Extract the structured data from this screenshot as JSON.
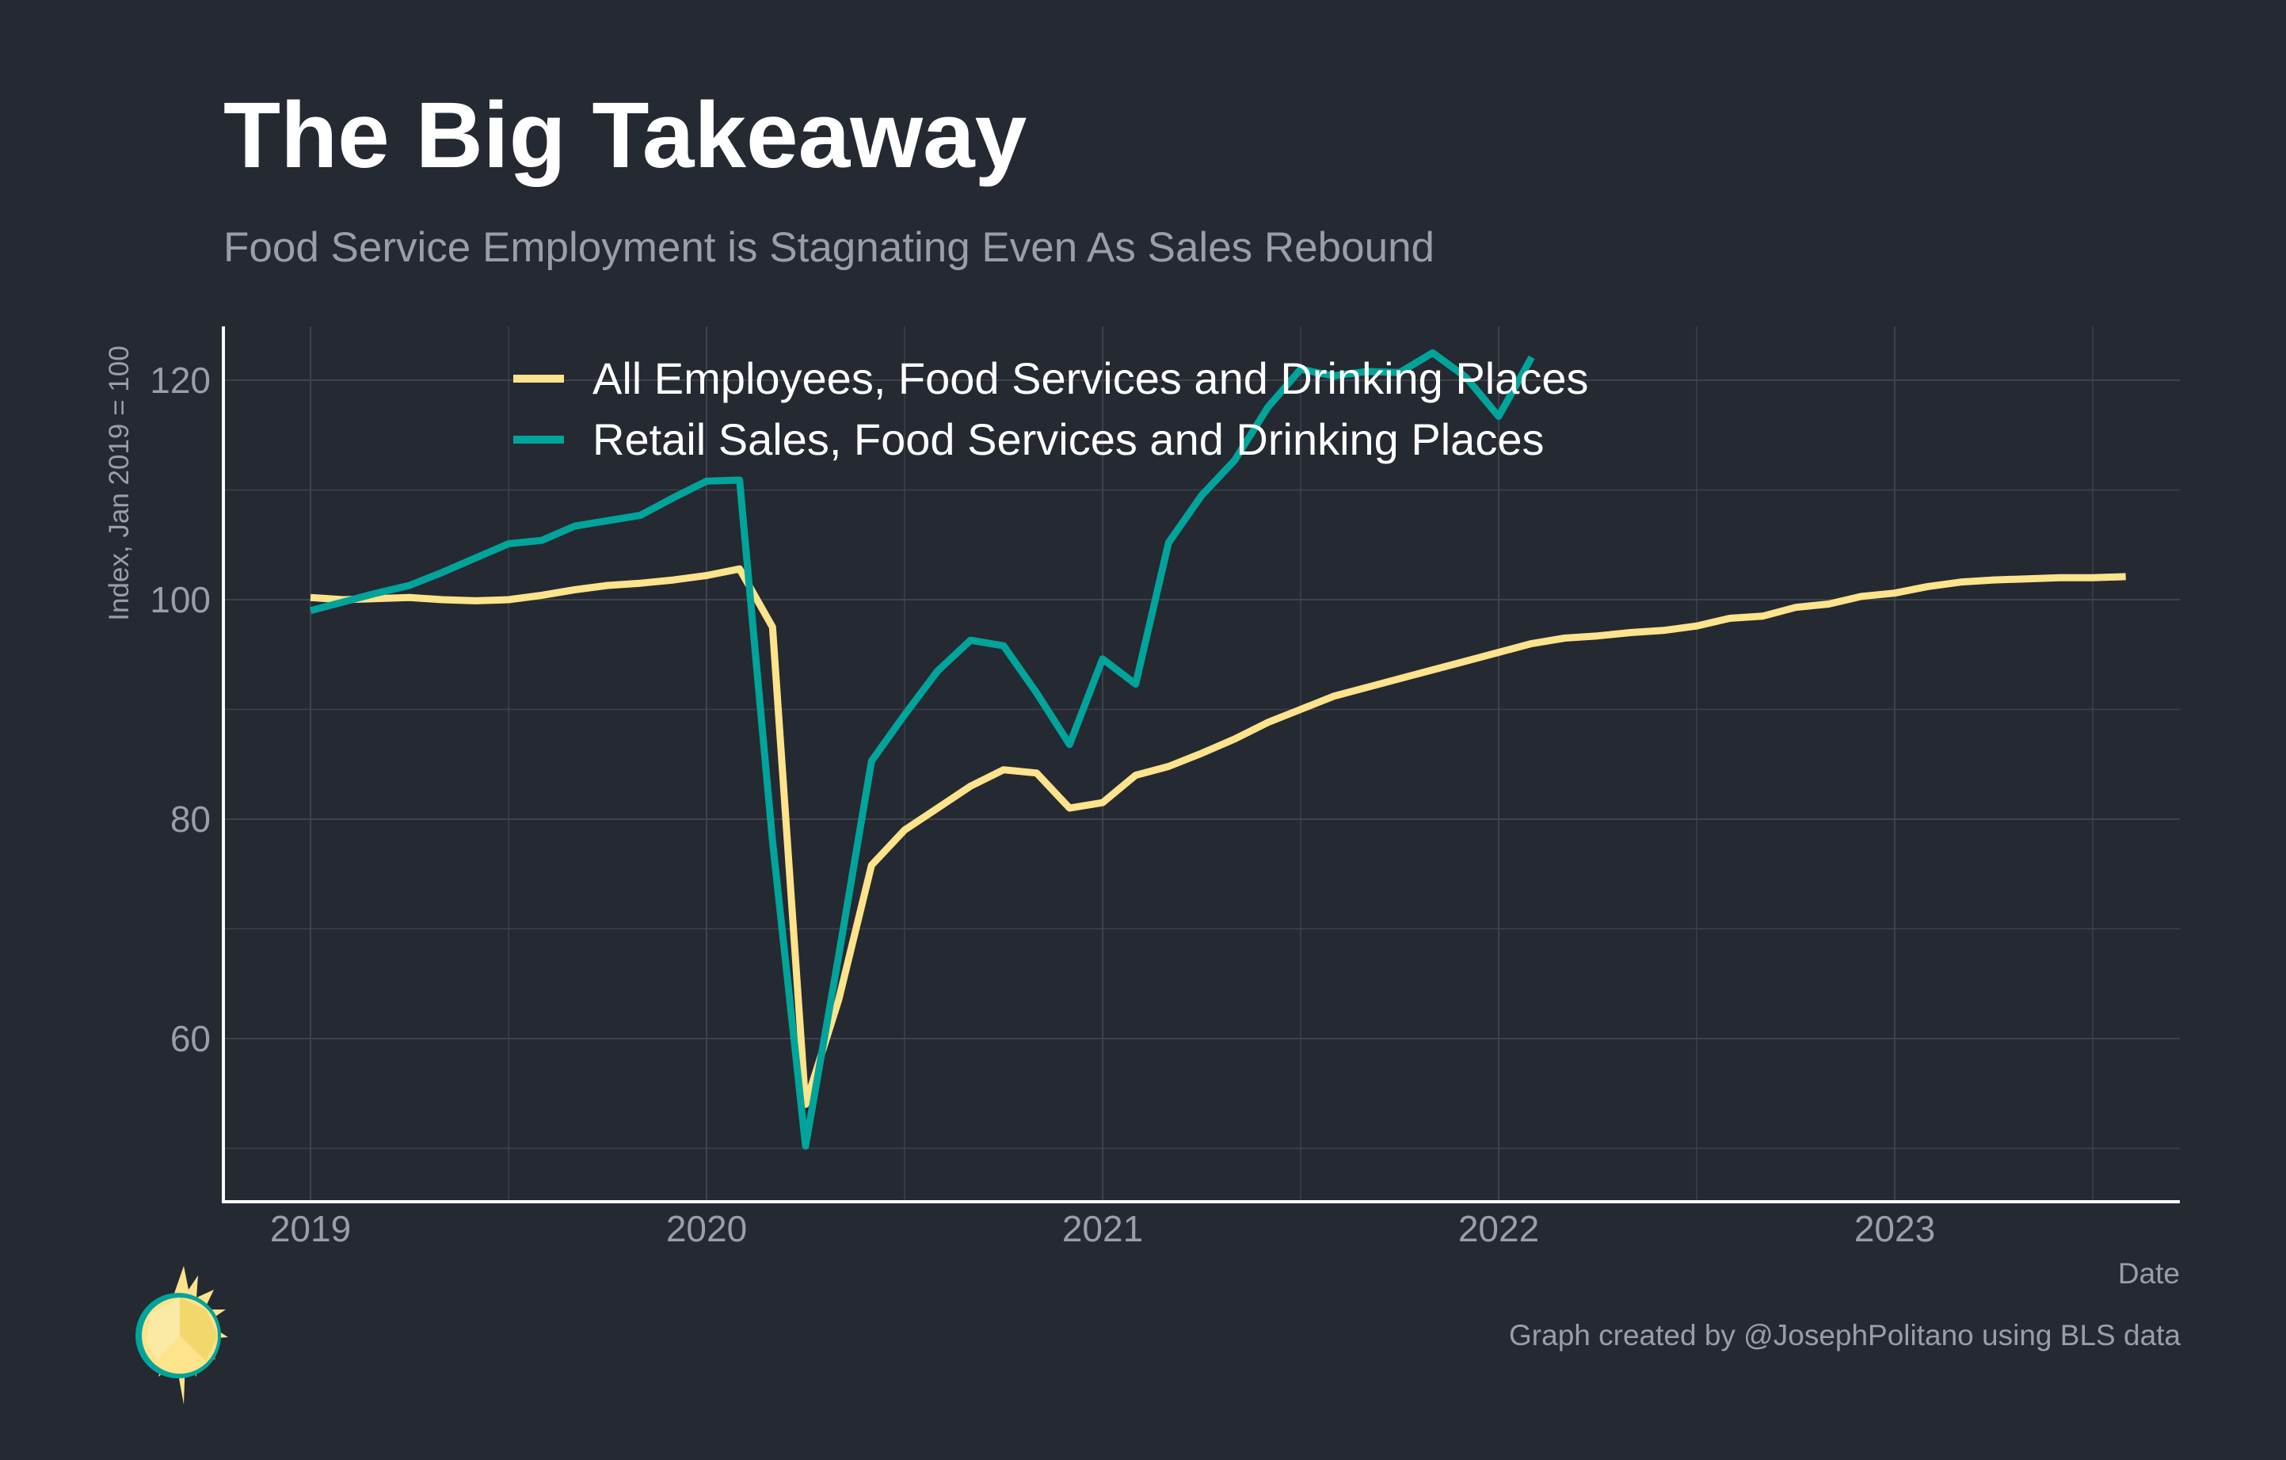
{
  "header": {
    "title": "The Big Takeaway",
    "subtitle": "Food Service Employment is Stagnating Even As Sales Rebound"
  },
  "footer": {
    "caption": "Graph created by @JosephPolitano using BLS data"
  },
  "colors": {
    "background": "#252932",
    "employees": "#FDE38B",
    "sales": "#00A49A",
    "grid": "#3d424b",
    "axis": "#ffffff",
    "tick_text": "#9a9ea6"
  },
  "chart_data": {
    "type": "line",
    "title": "The Big Takeaway",
    "subtitle": "Food Service Employment is Stagnating Even As Sales Rebound",
    "xlabel": "Date",
    "ylabel": "Index, Jan 2019 = 100",
    "x_ticks": [
      "2019",
      "2020",
      "2021",
      "2022",
      "2023"
    ],
    "y_ticks": [
      60,
      80,
      100,
      120
    ],
    "xlim": [
      "2018-10",
      "2023-09"
    ],
    "ylim": [
      45,
      125
    ],
    "grid": true,
    "legend_position": "top-center",
    "series": [
      {
        "name": "All Employees, Food Services and Drinking Places",
        "color": "#FDE38B",
        "points": [
          [
            "2019-01",
            100.2
          ],
          [
            "2019-02",
            100.0
          ],
          [
            "2019-03",
            100.1
          ],
          [
            "2019-04",
            100.2
          ],
          [
            "2019-05",
            100.0
          ],
          [
            "2019-06",
            99.9
          ],
          [
            "2019-07",
            100.0
          ],
          [
            "2019-08",
            100.4
          ],
          [
            "2019-09",
            100.9
          ],
          [
            "2019-10",
            101.3
          ],
          [
            "2019-11",
            101.5
          ],
          [
            "2019-12",
            101.8
          ],
          [
            "2020-01",
            102.2
          ],
          [
            "2020-02",
            102.8
          ],
          [
            "2020-03",
            97.5
          ],
          [
            "2020-04",
            54.0
          ],
          [
            "2020-05",
            63.5
          ],
          [
            "2020-06",
            75.8
          ],
          [
            "2020-07",
            79.0
          ],
          [
            "2020-08",
            81.0
          ],
          [
            "2020-09",
            83.0
          ],
          [
            "2020-10",
            84.5
          ],
          [
            "2020-11",
            84.2
          ],
          [
            "2020-12",
            81.0
          ],
          [
            "2021-01",
            81.5
          ],
          [
            "2021-02",
            84.0
          ],
          [
            "2021-03",
            84.8
          ],
          [
            "2021-04",
            86.0
          ],
          [
            "2021-05",
            87.3
          ],
          [
            "2021-06",
            88.8
          ],
          [
            "2021-07",
            90.0
          ],
          [
            "2021-08",
            91.2
          ],
          [
            "2021-09",
            92.0
          ],
          [
            "2021-10",
            92.8
          ],
          [
            "2021-11",
            93.6
          ],
          [
            "2021-12",
            94.4
          ],
          [
            "2022-01",
            95.2
          ],
          [
            "2022-02",
            96.0
          ],
          [
            "2022-03",
            96.5
          ],
          [
            "2022-04",
            96.7
          ],
          [
            "2022-05",
            97.0
          ],
          [
            "2022-06",
            97.2
          ],
          [
            "2022-07",
            97.6
          ],
          [
            "2022-08",
            98.3
          ],
          [
            "2022-09",
            98.5
          ],
          [
            "2022-10",
            99.3
          ],
          [
            "2022-11",
            99.6
          ],
          [
            "2022-12",
            100.3
          ],
          [
            "2023-01",
            100.6
          ],
          [
            "2023-02",
            101.2
          ],
          [
            "2023-03",
            101.6
          ],
          [
            "2023-04",
            101.8
          ],
          [
            "2023-05",
            101.9
          ],
          [
            "2023-06",
            102.0
          ],
          [
            "2023-07",
            102.0
          ],
          [
            "2023-08",
            102.1
          ]
        ]
      },
      {
        "name": "Retail Sales, Food Services and Drinking Places",
        "color": "#00A49A",
        "points": [
          [
            "2019-01",
            99.0
          ],
          [
            "2019-02",
            99.8
          ],
          [
            "2019-03",
            100.6
          ],
          [
            "2019-04",
            101.3
          ],
          [
            "2019-05",
            102.5
          ],
          [
            "2019-06",
            103.8
          ],
          [
            "2019-07",
            105.1
          ],
          [
            "2019-08",
            105.4
          ],
          [
            "2019-09",
            106.7
          ],
          [
            "2019-10",
            107.2
          ],
          [
            "2019-11",
            107.7
          ],
          [
            "2019-12",
            109.3
          ],
          [
            "2020-01",
            110.8
          ],
          [
            "2020-02",
            110.9
          ],
          [
            "2020-03",
            78.0
          ],
          [
            "2020-04",
            50.2
          ],
          [
            "2020-05",
            67.5
          ],
          [
            "2020-06",
            85.3
          ],
          [
            "2020-07",
            89.5
          ],
          [
            "2020-08",
            93.5
          ],
          [
            "2020-09",
            96.3
          ],
          [
            "2020-10",
            95.8
          ],
          [
            "2020-11",
            91.5
          ],
          [
            "2020-12",
            86.8
          ],
          [
            "2021-01",
            94.6
          ],
          [
            "2021-02",
            92.3
          ],
          [
            "2021-03",
            105.2
          ],
          [
            "2021-04",
            109.5
          ],
          [
            "2021-05",
            112.7
          ],
          [
            "2021-06",
            117.5
          ],
          [
            "2021-07",
            121.0
          ],
          [
            "2021-08",
            120.4
          ],
          [
            "2021-09",
            120.8
          ],
          [
            "2021-10",
            120.7
          ],
          [
            "2021-11",
            122.5
          ],
          [
            "2021-12",
            120.3
          ],
          [
            "2022-01",
            116.7
          ],
          [
            "2022-02",
            122.1
          ]
        ]
      }
    ]
  }
}
